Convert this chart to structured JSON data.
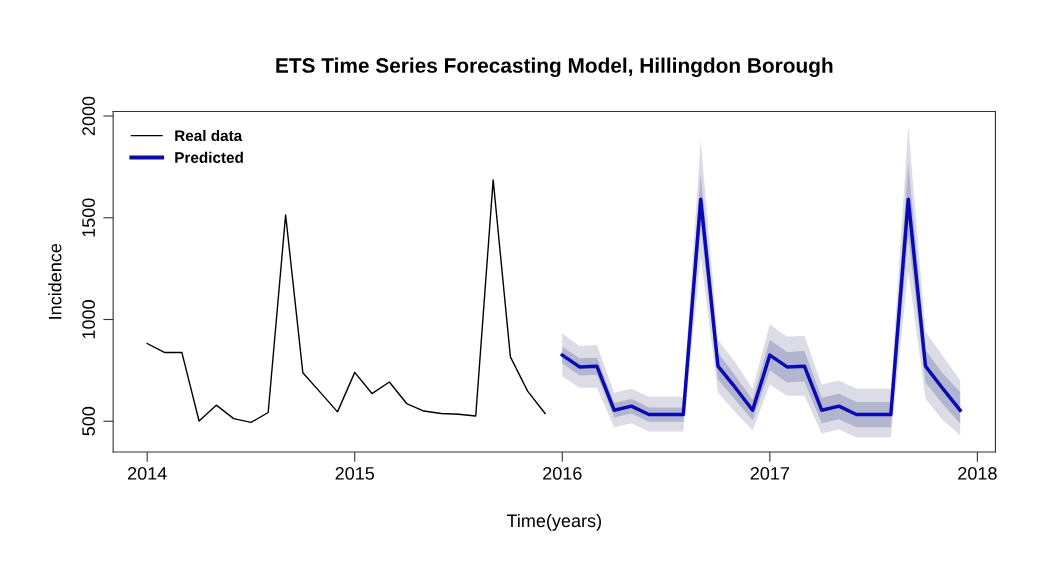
{
  "chart_data": {
    "type": "line",
    "title": "ETS Time Series Forecasting Model, Hillingdon Borough",
    "xlabel": "Time(years)",
    "ylabel": "Incidence",
    "xlim": [
      2013.836,
      2018.087
    ],
    "xticks": [
      2014,
      2015,
      2016,
      2017,
      2018
    ],
    "ylim": [
      349,
      2022
    ],
    "yticks": [
      500,
      1000,
      1500,
      2000
    ],
    "grid": false,
    "legend": "top left",
    "line_style": "solid",
    "marker": "none",
    "series": [
      {
        "name": "Real data",
        "color": "#000000",
        "x": [
          2014.0,
          2014.083,
          2014.167,
          2014.25,
          2014.333,
          2014.417,
          2014.5,
          2014.583,
          2014.667,
          2014.75,
          2014.833,
          2014.917,
          2015.0,
          2015.083,
          2015.167,
          2015.25,
          2015.333,
          2015.417,
          2015.5,
          2015.583,
          2015.667,
          2015.75,
          2015.833,
          2015.917
        ],
        "values": [
          882,
          838,
          838,
          501,
          579,
          513,
          494,
          543,
          1514,
          738,
          643,
          546,
          740,
          636,
          693,
          587,
          550,
          538,
          534,
          526,
          1686,
          816,
          648,
          538
        ]
      },
      {
        "color": "#dcdce6",
        "x": [
          2016.0,
          2016.083,
          2016.167,
          2016.25,
          2016.333,
          2016.417,
          2016.5,
          2016.583,
          2016.667,
          2016.75,
          2016.833,
          2016.917,
          2017.0,
          2017.083,
          2017.167,
          2017.25,
          2017.333,
          2017.417,
          2017.5,
          2017.583,
          2017.667,
          2017.75,
          2017.833,
          2017.917
        ],
        "values": [
          null,
          null,
          null,
          null,
          null,
          null,
          null,
          null,
          null,
          null,
          null,
          null,
          null,
          null,
          null,
          null,
          null,
          null,
          null,
          null,
          null,
          null,
          null,
          null
        ],
        "lower": [
          720,
          665,
          665,
          470,
          490,
          450,
          450,
          450,
          1310,
          640,
          545,
          455,
          680,
          625,
          625,
          440,
          460,
          420,
          420,
          420,
          1240,
          610,
          505,
          431
        ],
        "upper": [
          931,
          870,
          875,
          640,
          660,
          620,
          620,
          620,
          1880,
          900,
          790,
          660,
          975,
          915,
          920,
          680,
          700,
          660,
          660,
          660,
          1950,
          940,
          820,
          702
        ]
      },
      {
        "color": "#b1b5cd",
        "x": [
          2016.0,
          2016.083,
          2016.167,
          2016.25,
          2016.333,
          2016.417,
          2016.5,
          2016.583,
          2016.667,
          2016.75,
          2016.833,
          2016.917,
          2017.0,
          2017.083,
          2017.167,
          2017.25,
          2017.333,
          2017.417,
          2017.5,
          2017.583,
          2017.667,
          2017.75,
          2017.833,
          2017.917
        ],
        "values": [
          null,
          null,
          null,
          null,
          null,
          null,
          null,
          null,
          null,
          null,
          null,
          null,
          null,
          null,
          null,
          null,
          null,
          null,
          null,
          null,
          null,
          null,
          null,
          null
        ],
        "lower": [
          785,
          725,
          728,
          518,
          538,
          498,
          498,
          498,
          1460,
          705,
          605,
          505,
          750,
          690,
          695,
          490,
          510,
          470,
          470,
          470,
          1410,
          690,
          585,
          489
        ],
        "upper": [
          866,
          810,
          812,
          590,
          610,
          568,
          568,
          568,
          1720,
          835,
          725,
          605,
          900,
          840,
          845,
          615,
          635,
          595,
          595,
          595,
          1770,
          850,
          735,
          644
        ]
      },
      {
        "name": "Predicted",
        "color": "#0a0ab4",
        "x": [
          2016.0,
          2016.083,
          2016.167,
          2016.25,
          2016.333,
          2016.417,
          2016.5,
          2016.583,
          2016.667,
          2016.75,
          2016.833,
          2016.917,
          2017.0,
          2017.083,
          2017.167,
          2017.25,
          2017.333,
          2017.417,
          2017.5,
          2017.583,
          2017.667,
          2017.75,
          2017.833,
          2017.917
        ],
        "values": [
          825,
          767,
          770,
          554,
          574,
          533,
          533,
          533,
          1591,
          771,
          666,
          554,
          825,
          767,
          770,
          554,
          574,
          533,
          533,
          533,
          1591,
          771,
          661,
          554
        ]
      }
    ]
  }
}
